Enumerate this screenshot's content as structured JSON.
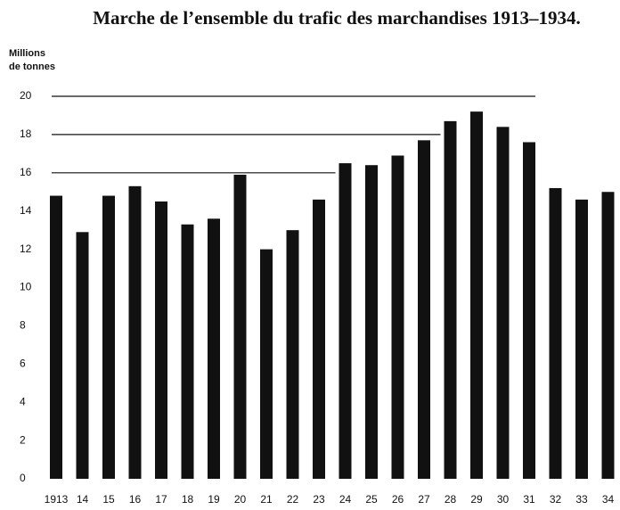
{
  "chart_data": {
    "type": "bar",
    "title": "Marche de l’ensemble du trafic des marchandises 1913–1934.",
    "y_label": [
      "Millions",
      "de tonnes"
    ],
    "categories": [
      "1913",
      "14",
      "15",
      "16",
      "17",
      "18",
      "19",
      "20",
      "21",
      "22",
      "23",
      "24",
      "25",
      "26",
      "27",
      "28",
      "29",
      "30",
      "31",
      "32",
      "33",
      "34"
    ],
    "values": [
      14.8,
      12.9,
      14.8,
      15.3,
      14.5,
      13.3,
      13.6,
      15.9,
      12.0,
      13.0,
      14.6,
      16.5,
      16.4,
      16.9,
      17.7,
      18.7,
      19.2,
      18.4,
      17.6,
      15.2,
      14.6,
      15.0
    ],
    "color": "#111111",
    "ylim": [
      0,
      20
    ],
    "yticks": [
      0,
      2,
      4,
      6,
      8,
      10,
      12,
      14,
      16,
      18,
      20
    ],
    "grid": true
  }
}
